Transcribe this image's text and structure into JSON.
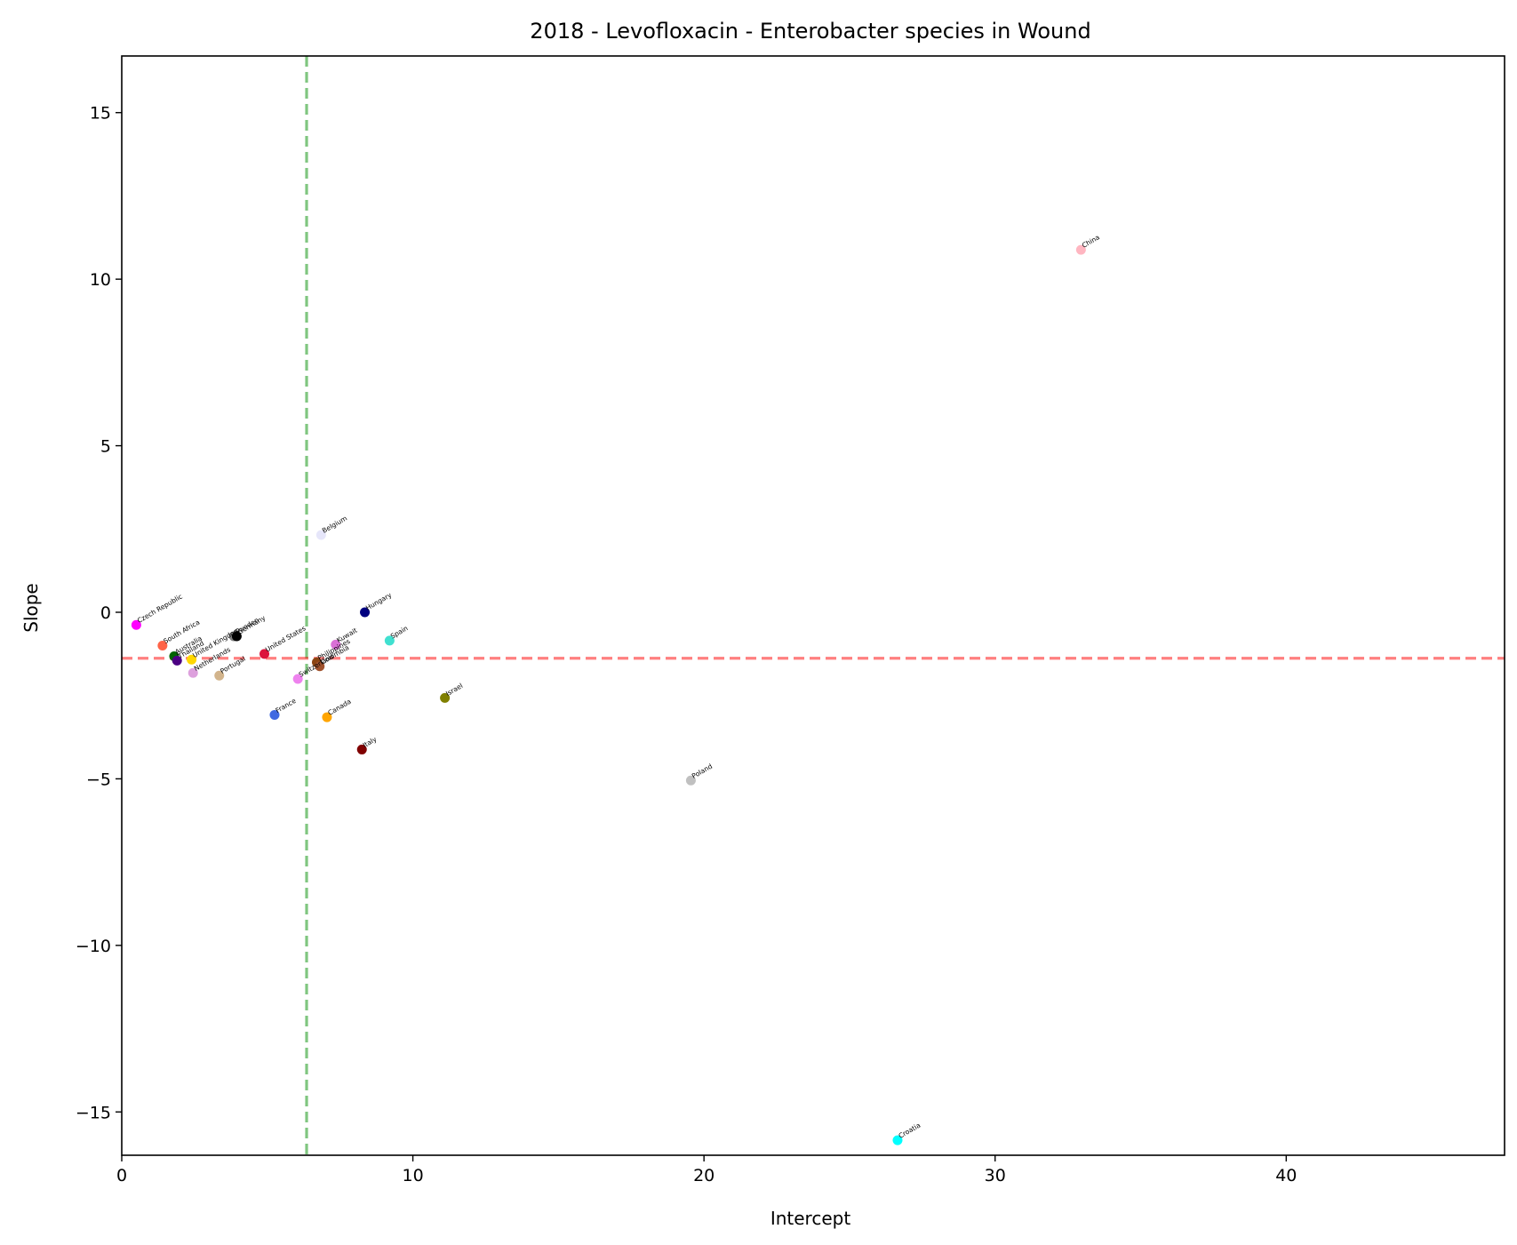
{
  "chart_data": {
    "type": "scatter",
    "title": "2018 - Levofloxacin - Enterobacter species in Wound",
    "xlabel": "Intercept",
    "ylabel": "Slope",
    "xlim": [
      0,
      47.5
    ],
    "ylim": [
      -16.3,
      16.7
    ],
    "xticks": [
      0,
      10,
      20,
      30,
      40
    ],
    "yticks": [
      -15,
      -10,
      -5,
      0,
      5,
      10,
      15
    ],
    "xtick_labels": [
      "0",
      "10",
      "20",
      "30",
      "40"
    ],
    "ytick_labels": [
      "−15",
      "−10",
      "−5",
      "0",
      "5",
      "10",
      "15"
    ],
    "grid": false,
    "reference_lines": [
      {
        "orientation": "vertical",
        "x": 6.35,
        "color": "#2ca02c",
        "style": "dashed"
      },
      {
        "orientation": "horizontal",
        "y": -1.38,
        "color": "#ff0000",
        "style": "dashed"
      }
    ],
    "points": [
      {
        "label": "China",
        "x": 32.95,
        "y": 10.88,
        "color": "#ffb6c1"
      },
      {
        "label": "Belgium",
        "x": 6.85,
        "y": 2.32,
        "color": "#e6e6fa"
      },
      {
        "label": "Czech Republic",
        "x": 0.5,
        "y": -0.38,
        "color": "#ff00ff"
      },
      {
        "label": "Hungary",
        "x": 8.35,
        "y": 0.0,
        "color": "#000080"
      },
      {
        "label": "South Africa",
        "x": 1.4,
        "y": -1.0,
        "color": "#ff6347"
      },
      {
        "label": "Australia",
        "x": 1.8,
        "y": -1.32,
        "color": "#006400"
      },
      {
        "label": "Thailand",
        "x": 1.9,
        "y": -1.45,
        "color": "#4b0082"
      },
      {
        "label": "United Kingdom",
        "x": 2.4,
        "y": -1.42,
        "color": "#ffd700"
      },
      {
        "label": "Sweden",
        "x": 3.85,
        "y": -0.72,
        "color": "#808080"
      },
      {
        "label": "Germany",
        "x": 3.95,
        "y": -0.72,
        "color": "#000000"
      },
      {
        "label": "Netherlands",
        "x": 2.45,
        "y": -1.82,
        "color": "#dda0dd"
      },
      {
        "label": "Portugal",
        "x": 3.35,
        "y": -1.9,
        "color": "#d2b48c"
      },
      {
        "label": "United States",
        "x": 4.9,
        "y": -1.25,
        "color": "#dc143c"
      },
      {
        "label": "Kuwait",
        "x": 7.35,
        "y": -0.97,
        "color": "#da70d6"
      },
      {
        "label": "Spain",
        "x": 9.2,
        "y": -0.85,
        "color": "#40e0d0"
      },
      {
        "label": "Philippines",
        "x": 6.7,
        "y": -1.5,
        "color": "#8b4513"
      },
      {
        "label": "Colombia",
        "x": 6.8,
        "y": -1.62,
        "color": "#a0522d"
      },
      {
        "label": "Switzerland",
        "x": 6.05,
        "y": -2.0,
        "color": "#ee82ee"
      },
      {
        "label": "France",
        "x": 5.25,
        "y": -3.08,
        "color": "#4169e1"
      },
      {
        "label": "Canada",
        "x": 7.05,
        "y": -3.15,
        "color": "#ffa500"
      },
      {
        "label": "Israel",
        "x": 11.1,
        "y": -2.57,
        "color": "#808000"
      },
      {
        "label": "Italy",
        "x": 8.25,
        "y": -4.12,
        "color": "#800000"
      },
      {
        "label": "Poland",
        "x": 19.55,
        "y": -5.05,
        "color": "#c0c0c0"
      },
      {
        "label": "Croatia",
        "x": 26.65,
        "y": -15.85,
        "color": "#00ffff"
      }
    ]
  }
}
